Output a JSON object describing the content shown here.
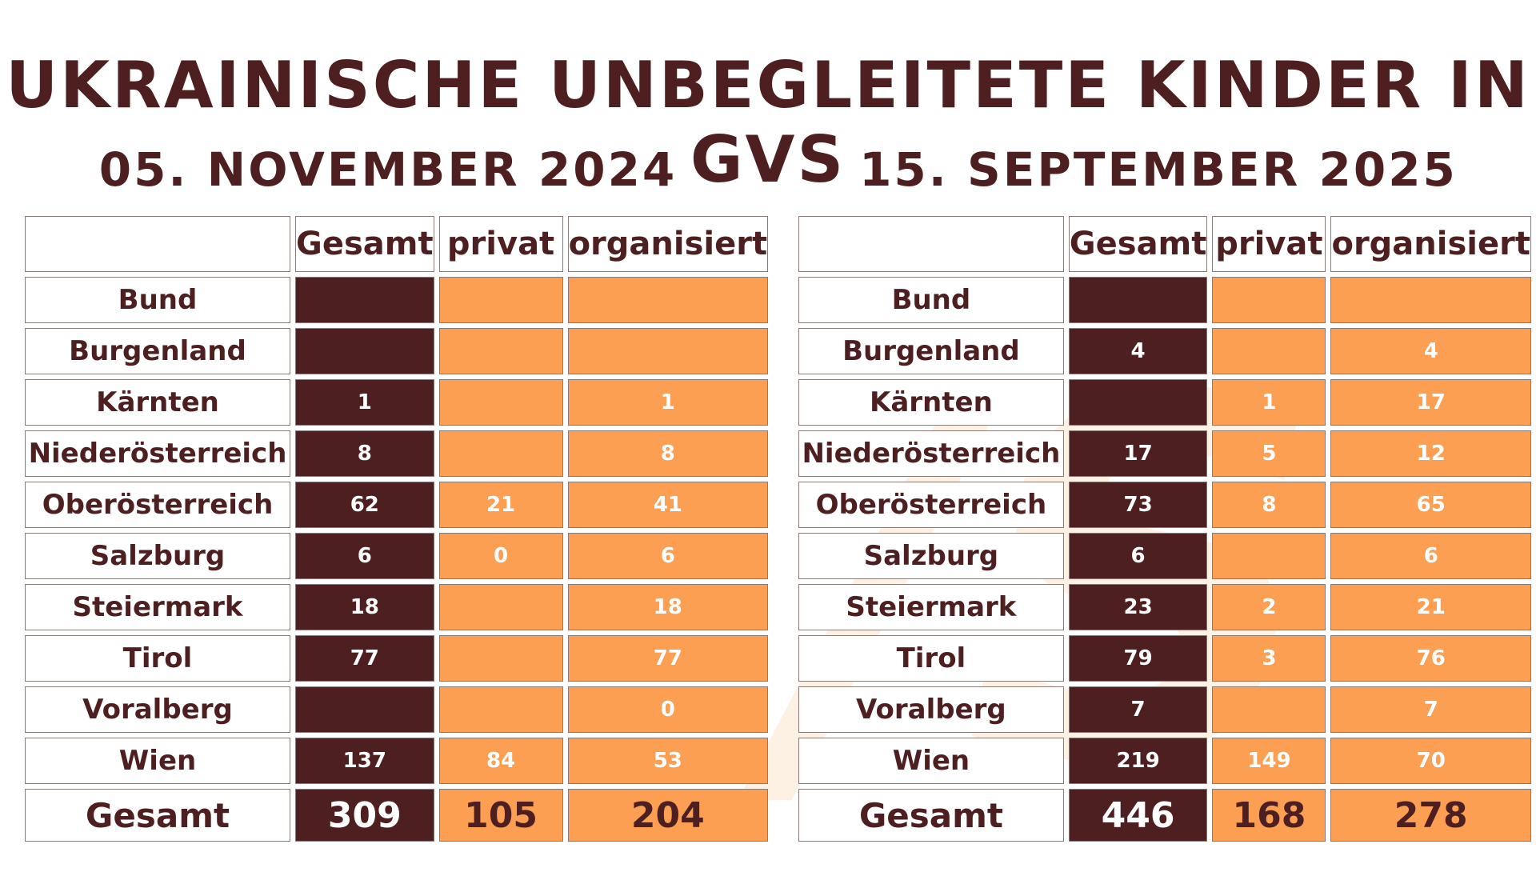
{
  "title": "UKRAINISCHE UNBEGLEITETE KINDER IN GVS",
  "columns": [
    "Gesamt",
    "privat",
    "organisiert"
  ],
  "colors": {
    "dark": "#4e1f20",
    "orange": "#fc9f52",
    "white": "#ffffff"
  },
  "tables": [
    {
      "date": "05. NOVEMBER 2024",
      "rows": [
        {
          "name": "Bund",
          "gesamt": "",
          "privat": "",
          "organisiert": ""
        },
        {
          "name": "Burgenland",
          "gesamt": "",
          "privat": "",
          "organisiert": ""
        },
        {
          "name": "Kärnten",
          "gesamt": "1",
          "privat": "",
          "organisiert": "1"
        },
        {
          "name": "Niederösterreich",
          "gesamt": "8",
          "privat": "",
          "organisiert": "8"
        },
        {
          "name": "Oberösterreich",
          "gesamt": "62",
          "privat": "21",
          "organisiert": "41"
        },
        {
          "name": "Salzburg",
          "gesamt": "6",
          "privat": "0",
          "organisiert": "6"
        },
        {
          "name": "Steiermark",
          "gesamt": "18",
          "privat": "",
          "organisiert": "18"
        },
        {
          "name": "Tirol",
          "gesamt": "77",
          "privat": "",
          "organisiert": "77"
        },
        {
          "name": "Voralberg",
          "gesamt": "",
          "privat": "",
          "organisiert": "0"
        },
        {
          "name": "Wien",
          "gesamt": "137",
          "privat": "84",
          "organisiert": "53"
        }
      ],
      "total": {
        "name": "Gesamt",
        "gesamt": "309",
        "privat": "105",
        "organisiert": "204"
      }
    },
    {
      "date": "15. SEPTEMBER 2025",
      "rows": [
        {
          "name": "Bund",
          "gesamt": "",
          "privat": "",
          "organisiert": ""
        },
        {
          "name": "Burgenland",
          "gesamt": "4",
          "privat": "",
          "organisiert": "4"
        },
        {
          "name": "Kärnten",
          "gesamt": "",
          "privat": "1",
          "organisiert": "17"
        },
        {
          "name": "Niederösterreich",
          "gesamt": "17",
          "privat": "5",
          "organisiert": "12"
        },
        {
          "name": "Oberösterreich",
          "gesamt": "73",
          "privat": "8",
          "organisiert": "65"
        },
        {
          "name": "Salzburg",
          "gesamt": "6",
          "privat": "",
          "organisiert": "6"
        },
        {
          "name": "Steiermark",
          "gesamt": "23",
          "privat": "2",
          "organisiert": "21"
        },
        {
          "name": "Tirol",
          "gesamt": "79",
          "privat": "3",
          "organisiert": "76"
        },
        {
          "name": "Voralberg",
          "gesamt": "7",
          "privat": "",
          "organisiert": "7"
        },
        {
          "name": "Wien",
          "gesamt": "219",
          "privat": "149",
          "organisiert": "70"
        }
      ],
      "total": {
        "name": "Gesamt",
        "gesamt": "446",
        "privat": "168",
        "organisiert": "278"
      }
    }
  ]
}
